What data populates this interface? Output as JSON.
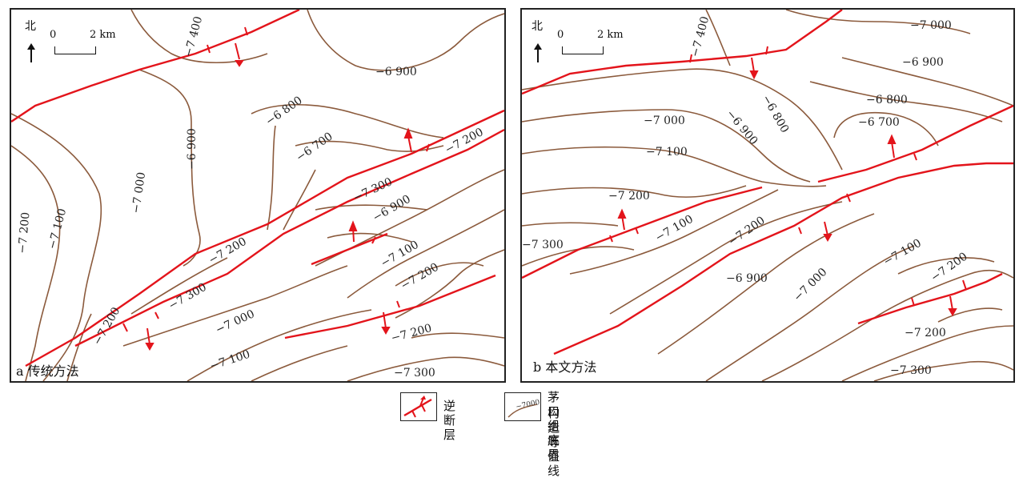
{
  "panel_a": {
    "caption": "a 传统方法",
    "north": "北",
    "scale_start": "0",
    "scale_end": "2 km",
    "contour_labels": [
      "−7 400",
      "−6 900",
      "−6 800",
      "−6 700",
      "−7 200",
      "−6 900",
      "−7 000",
      "−7 100",
      "−7 200",
      "−7 300",
      "−7 200",
      "−6 900",
      "−7 100",
      "−7 200",
      "−7 300",
      "−7 200",
      "−7 000",
      "−7 200",
      "−7 100",
      "−7 300"
    ]
  },
  "panel_b": {
    "caption": "b 本文方法",
    "north": "北",
    "scale_start": "0",
    "scale_end": "2 km",
    "contour_labels": [
      "−7 400",
      "−7 000",
      "−6 900",
      "−6 800",
      "−6 900",
      "−6 800",
      "−7 000",
      "−6 700",
      "−7 100",
      "−7 200",
      "−7 300",
      "−7 100",
      "−7 200",
      "−6 900",
      "−7 000",
      "−7 100",
      "−7 200",
      "−7 200",
      "−7 300"
    ]
  },
  "legend": {
    "fault_label": "逆断层",
    "contour_sample": "−7000",
    "contour_label_line1": "茅口组底界",
    "contour_label_line2": "构造等值线"
  },
  "colors": {
    "contour": "#8b5a3c",
    "fault": "#e3141b",
    "frame": "#222222"
  }
}
